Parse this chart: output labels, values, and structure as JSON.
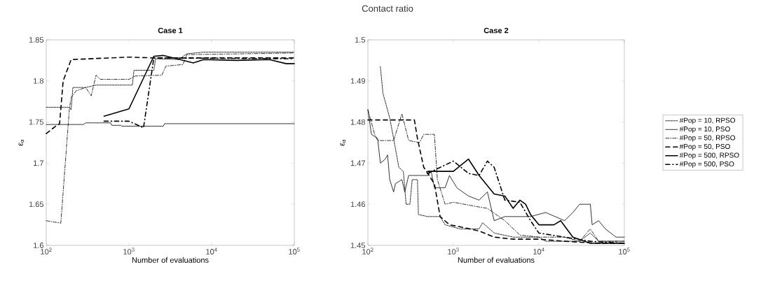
{
  "chart_data": [
    {
      "type": "line",
      "title": "Case 1",
      "xlabel": "Number of evaluations",
      "ylabel": "ε$_{α}$",
      "annotations": [
        "Contact ratio"
      ],
      "log": "x",
      "grid": false,
      "xlim": [
        100,
        100000
      ],
      "ylim": [
        1.6,
        1.85
      ],
      "xticks": [
        {
          "value": 100,
          "label": "10$^{2}$"
        },
        {
          "value": 1000,
          "label": "10$^{3}$"
        },
        {
          "value": 10000,
          "label": "10$^{4}$"
        },
        {
          "value": 100000,
          "label": "10$^{5}$"
        }
      ],
      "yticks": [
        1.6,
        1.65,
        1.7,
        1.75,
        1.8,
        1.85
      ],
      "series": [
        {
          "color": "#000000",
          "line_style": "dashed",
          "x": [
            100,
            190,
            200,
            210,
            300,
            400,
            1100,
            1150,
            2000,
            2100,
            4000,
            5000,
            8000,
            100000
          ],
          "values": [
            1.768,
            1.768,
            1.765,
            1.792,
            1.792,
            1.795,
            1.795,
            1.813,
            1.813,
            1.827,
            1.826,
            1.833,
            1.835,
            1.835
          ]
        },
        {
          "color": "#000000",
          "line_style": "solid",
          "x": [
            100,
            280,
            300,
            600,
            620,
            800,
            820,
            2600,
            2700,
            100000
          ],
          "values": [
            1.747,
            1.747,
            1.749,
            1.749,
            1.746,
            1.746,
            1.745,
            1.745,
            1.748,
            1.748
          ]
        },
        {
          "color": "#000000",
          "line_style": "dashdot",
          "x": [
            100,
            150,
            190,
            200,
            230,
            300,
            350,
            400,
            450,
            1000,
            1200,
            2500,
            2800,
            4500,
            5000,
            100000
          ],
          "values": [
            1.63,
            1.627,
            1.765,
            1.78,
            1.788,
            1.792,
            1.782,
            1.807,
            1.802,
            1.802,
            1.806,
            1.807,
            1.818,
            1.82,
            1.832,
            1.834
          ]
        },
        {
          "color": "#000000",
          "line_style": "dashed",
          "x": [
            100,
            130,
            145,
            160,
            200,
            1000,
            2000,
            100000
          ],
          "values": [
            1.736,
            1.745,
            1.748,
            1.8,
            1.826,
            1.829,
            1.828,
            1.828
          ]
        },
        {
          "color": "#000000",
          "line_style": "solid",
          "x": [
            500,
            1000,
            2000,
            2600,
            6000,
            8000,
            20000,
            50000,
            80000,
            100000
          ],
          "values": [
            1.757,
            1.766,
            1.83,
            1.831,
            1.822,
            1.826,
            1.825,
            1.826,
            1.821,
            1.821
          ]
        },
        {
          "color": "#000000",
          "line_style": "dashdot",
          "x": [
            500,
            1000,
            1500,
            2000,
            100000
          ],
          "values": [
            1.751,
            1.751,
            1.743,
            1.828,
            1.827
          ]
        }
      ]
    },
    {
      "type": "line",
      "title": "Case 2",
      "xlabel": "Number of evaluations",
      "ylabel": "ε$_{α}$",
      "log": "x",
      "grid": false,
      "legend": "right",
      "xlim": [
        100,
        100000
      ],
      "ylim": [
        1.45,
        1.5
      ],
      "xticks": [
        {
          "value": 100,
          "label": "10$^{2}$"
        },
        {
          "value": 1000,
          "label": "10$^{3}$"
        },
        {
          "value": 10000,
          "label": "10$^{4}$"
        },
        {
          "value": 100000,
          "label": "10$^{5}$"
        }
      ],
      "yticks": [
        1.45,
        1.46,
        1.47,
        1.48,
        1.49,
        1.5
      ],
      "series": [
        {
          "name": "#Pop = 10, RPSO",
          "color": "#000000",
          "line_style": "dashed",
          "x": [
            140,
            150,
            180,
            200,
            230,
            260,
            280,
            310,
            330,
            380,
            390,
            500,
            700,
            800,
            1200,
            2000,
            2200,
            3000,
            5000,
            10000,
            12000,
            30000,
            40000,
            50000,
            100000
          ],
          "values": [
            1.4935,
            1.487,
            1.481,
            1.476,
            1.469,
            1.468,
            1.46,
            1.46,
            1.466,
            1.466,
            1.4575,
            1.457,
            1.457,
            1.455,
            1.454,
            1.454,
            1.4555,
            1.453,
            1.452,
            1.452,
            1.451,
            1.451,
            1.453,
            1.451,
            1.451
          ]
        },
        {
          "name": "#Pop = 10, PSO",
          "color": "#000000",
          "line_style": "solid",
          "x": [
            100,
            110,
            130,
            140,
            160,
            170,
            180,
            200,
            210,
            250,
            270,
            300,
            500,
            550,
            600,
            800,
            900,
            1100,
            1500,
            2000,
            2500,
            3000,
            4000,
            8000,
            12000,
            20000,
            25000,
            30000,
            40000,
            42000,
            50000,
            60000,
            80000,
            100000
          ],
          "values": [
            1.483,
            1.477,
            1.476,
            1.47,
            1.471,
            1.472,
            1.466,
            1.463,
            1.465,
            1.466,
            1.463,
            1.467,
            1.467,
            1.468,
            1.464,
            1.464,
            1.467,
            1.464,
            1.462,
            1.461,
            1.463,
            1.456,
            1.457,
            1.457,
            1.458,
            1.456,
            1.458,
            1.46,
            1.46,
            1.455,
            1.456,
            1.454,
            1.452,
            1.452
          ]
        },
        {
          "name": "#Pop = 50, RPSO",
          "color": "#000000",
          "line_style": "dashdot",
          "x": [
            100,
            120,
            130,
            200,
            250,
            300,
            400,
            450,
            600,
            650,
            800,
            1000,
            1800,
            2500,
            4000,
            6000,
            10000,
            20000,
            30000,
            40000,
            50000,
            100000
          ],
          "values": [
            1.483,
            1.477,
            1.4755,
            1.4755,
            1.482,
            1.4755,
            1.475,
            1.477,
            1.477,
            1.466,
            1.46,
            1.4605,
            1.4595,
            1.459,
            1.456,
            1.4525,
            1.452,
            1.452,
            1.451,
            1.454,
            1.451,
            1.451
          ]
        },
        {
          "name": "#Pop = 50, PSO",
          "color": "#000000",
          "line_style": "dashed",
          "x": [
            100,
            350,
            380,
            450,
            600,
            700,
            900,
            1200,
            2000,
            3000,
            5000,
            10000,
            20000,
            50000,
            100000
          ],
          "values": [
            1.4805,
            1.4805,
            1.476,
            1.469,
            1.465,
            1.457,
            1.455,
            1.4545,
            1.4535,
            1.452,
            1.4515,
            1.4515,
            1.451,
            1.4505,
            1.4505
          ]
        },
        {
          "name": "#Pop = 500, RPSO",
          "color": "#000000",
          "line_style": "solid",
          "x": [
            500,
            1000,
            1500,
            2000,
            3000,
            4000,
            5000,
            6000,
            7000,
            8000,
            10000,
            15000,
            18000,
            25000,
            40000,
            100000
          ],
          "values": [
            1.468,
            1.468,
            1.471,
            1.467,
            1.4625,
            1.462,
            1.459,
            1.461,
            1.46,
            1.4575,
            1.455,
            1.455,
            1.456,
            1.452,
            1.4505,
            1.4505
          ]
        },
        {
          "name": "#Pop = 500, PSO",
          "color": "#000000",
          "line_style": "dashdot",
          "x": [
            500,
            1000,
            1500,
            2000,
            2500,
            3000,
            4000,
            6000,
            8000,
            10000,
            20000,
            40000,
            100000
          ],
          "values": [
            1.4675,
            1.4705,
            1.4675,
            1.467,
            1.4705,
            1.469,
            1.461,
            1.4605,
            1.456,
            1.453,
            1.452,
            1.451,
            1.4505
          ]
        }
      ]
    }
  ]
}
